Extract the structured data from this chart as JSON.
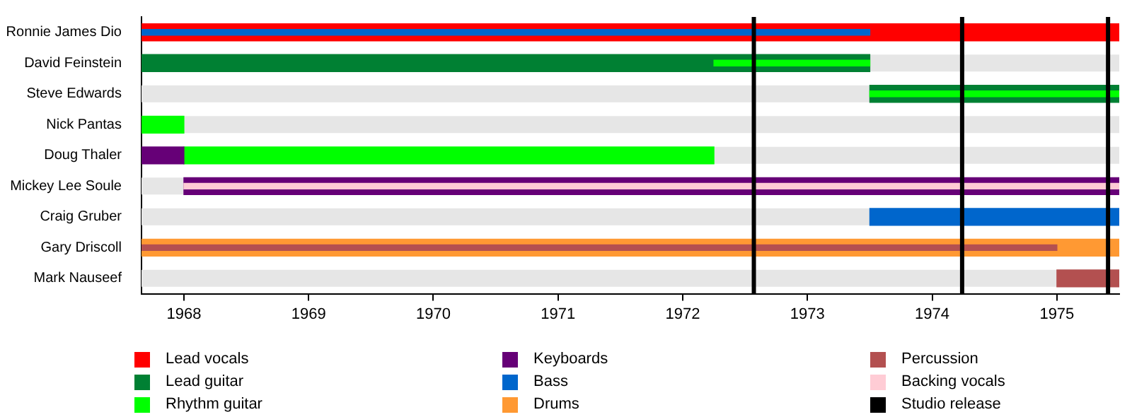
{
  "chart_data": {
    "type": "bar",
    "orientation": "horizontal",
    "categories": [
      "Ronnie James Dio",
      "David Feinstein",
      "Steve Edwards",
      "Nick Pantas",
      "Doug Thaler",
      "Mickey Lee Soule",
      "Craig Gruber",
      "Gary Driscoll",
      "Mark Nauseef"
    ],
    "series": [
      {
        "name": "Lead vocals",
        "color": "#ff0000",
        "values": [
          7.84,
          null,
          null,
          null,
          null,
          null,
          null,
          null,
          null
        ],
        "base": [
          1967.66,
          null,
          null,
          null,
          null,
          null,
          null,
          null,
          null
        ]
      },
      {
        "name": "Lead guitar",
        "color": "#008033",
        "values": [
          null,
          5.84,
          2.0,
          null,
          null,
          null,
          null,
          null,
          null
        ],
        "base": [
          null,
          1967.66,
          1973.5,
          null,
          null,
          null,
          null,
          null,
          null
        ]
      },
      {
        "name": "Rhythm guitar",
        "color": "#00ff00",
        "values": [
          null,
          1.25,
          2.0,
          0.34,
          4.25,
          null,
          null,
          null,
          null
        ],
        "base": [
          null,
          1972.25,
          1973.5,
          1967.66,
          1968.0,
          null,
          null,
          null,
          null
        ]
      },
      {
        "name": "Keyboards",
        "color": "#660077",
        "values": [
          null,
          null,
          null,
          null,
          0.34,
          7.5,
          null,
          null,
          null
        ],
        "base": [
          null,
          null,
          null,
          null,
          1967.66,
          1968.0,
          null,
          null,
          null
        ]
      },
      {
        "name": "Bass",
        "color": "#0066cc",
        "values": [
          5.84,
          null,
          null,
          null,
          null,
          null,
          2.0,
          null,
          null
        ],
        "base": [
          1967.66,
          null,
          null,
          null,
          null,
          null,
          1973.5,
          null,
          null
        ]
      },
      {
        "name": "Drums",
        "color": "#ff9933",
        "values": [
          null,
          null,
          null,
          null,
          null,
          null,
          null,
          7.84,
          null
        ],
        "base": [
          null,
          null,
          null,
          null,
          null,
          null,
          null,
          1967.66,
          null
        ]
      },
      {
        "name": "Percussion",
        "color": "#b35050",
        "values": [
          null,
          null,
          null,
          null,
          null,
          null,
          null,
          7.34,
          0.5
        ],
        "base": [
          null,
          null,
          null,
          null,
          null,
          null,
          null,
          1967.66,
          1975.0
        ]
      },
      {
        "name": "Backing vocals",
        "color": "#ffccd5",
        "values": [
          null,
          null,
          null,
          null,
          null,
          7.5,
          null,
          null,
          null
        ],
        "base": [
          null,
          null,
          null,
          null,
          null,
          1968.0,
          null,
          null,
          null
        ]
      }
    ],
    "ref_lines": [
      {
        "axis": "x",
        "value": 1972.57,
        "label": "Studio release",
        "color": "#000000"
      },
      {
        "axis": "x",
        "value": 1974.24,
        "color": "#000000"
      },
      {
        "axis": "x",
        "value": 1975.41,
        "color": "#000000"
      }
    ],
    "xlim": [
      1967.66,
      1975.5
    ],
    "xticks": [
      1968,
      1969,
      1970,
      1971,
      1972,
      1973,
      1974,
      1975
    ],
    "legend": "bottom"
  }
}
